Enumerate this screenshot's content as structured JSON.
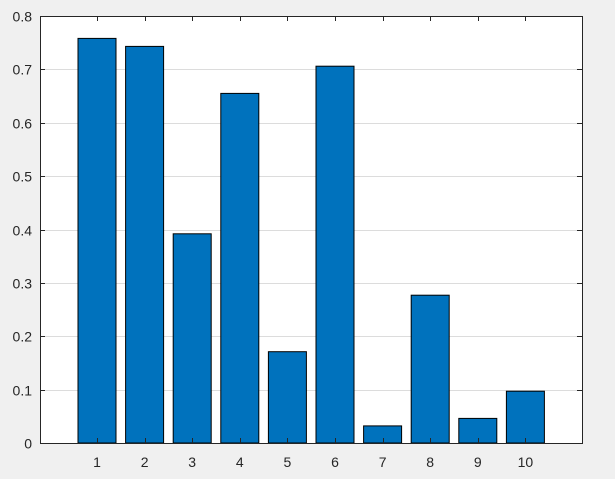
{
  "chart_data": {
    "type": "bar",
    "title": "",
    "xlabel": "",
    "ylabel": "",
    "categories": [
      "1",
      "2",
      "3",
      "4",
      "5",
      "6",
      "7",
      "8",
      "9",
      "10"
    ],
    "values": [
      0.758,
      0.743,
      0.392,
      0.655,
      0.171,
      0.706,
      0.032,
      0.277,
      0.046,
      0.097
    ],
    "ylim": [
      0,
      0.8
    ],
    "yticks": [
      "0",
      "0.1",
      "0.2",
      "0.3",
      "0.4",
      "0.5",
      "0.6",
      "0.7",
      "0.8"
    ],
    "grid": "horizontal",
    "colors": {
      "bar_fill": "#0072bd",
      "bar_edge": "#000000",
      "axes_background": "#ffffff",
      "figure_background": "#f0f0f0",
      "grid": "#dcdcdc",
      "axis": "#262626"
    }
  }
}
